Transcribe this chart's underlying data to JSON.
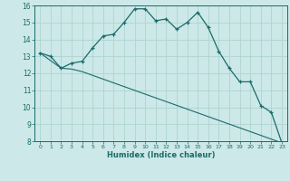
{
  "xlabel": "Humidex (Indice chaleur)",
  "bg_color": "#cce8e8",
  "grid_color": "#afd4d0",
  "line_color": "#1a6b6b",
  "xlim": [
    -0.5,
    23.5
  ],
  "ylim": [
    8,
    16
  ],
  "yticks": [
    8,
    9,
    10,
    11,
    12,
    13,
    14,
    15,
    16
  ],
  "xticks": [
    0,
    1,
    2,
    3,
    4,
    5,
    6,
    7,
    8,
    9,
    10,
    11,
    12,
    13,
    14,
    15,
    16,
    17,
    18,
    19,
    20,
    21,
    22,
    23
  ],
  "line1_x": [
    0,
    1,
    2,
    3,
    4,
    5,
    6,
    7,
    8,
    9,
    10,
    11,
    12,
    13,
    14,
    15,
    16,
    17,
    18,
    19,
    20,
    21,
    22,
    23
  ],
  "line1_y": [
    13.2,
    13.0,
    12.3,
    12.6,
    12.7,
    13.5,
    14.2,
    14.3,
    15.0,
    15.8,
    15.8,
    15.1,
    15.2,
    14.6,
    15.0,
    15.6,
    14.7,
    13.3,
    12.3,
    11.5,
    11.5,
    10.1,
    9.7,
    7.9
  ],
  "line2_x": [
    0,
    2,
    3,
    4,
    23
  ],
  "line2_y": [
    13.2,
    12.3,
    12.25,
    12.1,
    7.9
  ]
}
